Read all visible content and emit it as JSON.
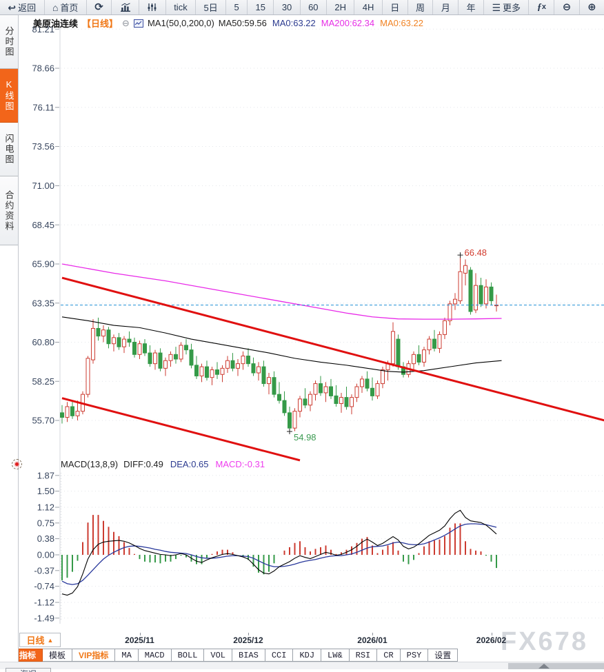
{
  "toolbar": {
    "items": [
      {
        "name": "back",
        "icon": "back",
        "label": "返回"
      },
      {
        "name": "home",
        "icon": "home",
        "label": "首页"
      },
      {
        "name": "refresh",
        "icon": "refresh"
      },
      {
        "name": "chart-style-bars",
        "icon": "bars"
      },
      {
        "name": "chart-style-sliders",
        "icon": "sliders"
      },
      {
        "name": "interval-tick",
        "label": "tick"
      },
      {
        "name": "interval-5d",
        "label": "5日"
      },
      {
        "name": "interval-5",
        "label": "5"
      },
      {
        "name": "interval-15",
        "label": "15"
      },
      {
        "name": "interval-30",
        "label": "30"
      },
      {
        "name": "interval-60",
        "label": "60"
      },
      {
        "name": "interval-2h",
        "label": "2H"
      },
      {
        "name": "interval-4h",
        "label": "4H"
      },
      {
        "name": "interval-day",
        "label": "日"
      },
      {
        "name": "interval-week",
        "label": "周"
      },
      {
        "name": "interval-month",
        "label": "月"
      },
      {
        "name": "interval-year",
        "label": "年"
      },
      {
        "name": "more",
        "icon": "menu",
        "label": "更多"
      },
      {
        "name": "formula",
        "icon": "fx"
      },
      {
        "name": "zoom-out",
        "icon": "zoom-out"
      },
      {
        "name": "zoom-in",
        "icon": "zoom-in"
      }
    ]
  },
  "sidebar": {
    "tabs": [
      {
        "name": "time-share-chart",
        "label": "分时图",
        "active": false
      },
      {
        "name": "kline-chart",
        "label": "K线图",
        "active": true
      },
      {
        "name": "flash-chart",
        "label": "闪电图",
        "active": false
      },
      {
        "name": "contract-info",
        "label": "合约资料",
        "active": false
      }
    ]
  },
  "chart_header": {
    "symbol": "美原油连续",
    "period_tag": "【日线】",
    "ma_settings": "MA1(50,0,200,0)",
    "ma_values": [
      {
        "label": "MA50:59.56",
        "color": "#222222"
      },
      {
        "label": "MA0:63.22",
        "color": "#2b3a8f"
      },
      {
        "label": "MA200:62.34",
        "color": "#e62ee6"
      },
      {
        "label": "MA0:63.22",
        "color": "#f08223"
      }
    ]
  },
  "macd_header": {
    "title": "MACD(13,8,9)",
    "values": [
      {
        "label": "DIFF:0.49",
        "color": "#222222"
      },
      {
        "label": "DEA:0.65",
        "color": "#2b3a8f"
      },
      {
        "label": "MACD:-0.31",
        "color": "#ee3cee"
      }
    ]
  },
  "x_axis": {
    "period_label": "日线",
    "period_arrow": "▲",
    "labels": [
      "2025/11",
      "2025/12",
      "2026/01",
      "2026/02"
    ]
  },
  "bottom_toolbar": {
    "items": [
      {
        "name": "indicator",
        "label": "指标",
        "active": true
      },
      {
        "name": "template",
        "label": "模板"
      },
      {
        "name": "vip-indicator",
        "label": "VIP指标",
        "vip": true
      },
      {
        "name": "ind-ma",
        "label": "MA",
        "mono": true
      },
      {
        "name": "ind-macd",
        "label": "MACD",
        "mono": true
      },
      {
        "name": "ind-boll",
        "label": "BOLL",
        "mono": true
      },
      {
        "name": "ind-vol",
        "label": "VOL",
        "mono": true
      },
      {
        "name": "ind-bias",
        "label": "BIAS",
        "mono": true
      },
      {
        "name": "ind-cci",
        "label": "CCI",
        "mono": true
      },
      {
        "name": "ind-kdj",
        "label": "KDJ",
        "mono": true
      },
      {
        "name": "ind-lw",
        "label": "LW&",
        "mono": true
      },
      {
        "name": "ind-rsi",
        "label": "RSI",
        "mono": true
      },
      {
        "name": "ind-cr",
        "label": "CR",
        "mono": true
      },
      {
        "name": "ind-psy",
        "label": "PSY",
        "mono": true
      },
      {
        "name": "settings",
        "label": "设置"
      }
    ]
  },
  "bottom_strip": {
    "tab_label": "海况"
  },
  "watermark": "FX678",
  "colors": {
    "accent_orange": "#f2651a",
    "candle_up": "#cc3b30",
    "candle_down": "#359a48",
    "trendline": "#e01010",
    "ma50": "#000000",
    "ma200": "#e828e8",
    "price_line": "#1e8fd5",
    "diff_line": "#000000",
    "dea_line": "#27379b",
    "high_label": "#d23b2e",
    "low_label": "#3a9a50",
    "watermark": "#d4d7dc"
  },
  "chart_data": [
    {
      "type": "candlestick",
      "symbol": "美原油连续",
      "period": "日线",
      "y_ticks": [
        81.21,
        78.66,
        76.11,
        73.56,
        71.0,
        68.45,
        65.9,
        63.35,
        60.8,
        58.25,
        55.7
      ],
      "x_tick_labels": [
        "2025/11",
        "2025/12",
        "2026/01",
        "2026/02"
      ],
      "x_tick_indices": [
        15,
        36,
        60,
        83
      ],
      "price_line_value": 63.22,
      "high_annotation": {
        "index": 77,
        "value": 66.48
      },
      "low_annotation": {
        "index": 44,
        "value": 54.98
      },
      "ma50_points": [
        [
          0,
          62.45
        ],
        [
          5,
          62.2
        ],
        [
          10,
          61.9
        ],
        [
          15,
          61.75
        ],
        [
          20,
          61.4
        ],
        [
          25,
          61.0
        ],
        [
          30,
          60.7
        ],
        [
          35,
          60.4
        ],
        [
          40,
          60.1
        ],
        [
          45,
          59.75
        ],
        [
          50,
          59.5
        ],
        [
          55,
          59.3
        ],
        [
          60,
          59.05
        ],
        [
          63,
          58.9
        ],
        [
          66,
          58.85
        ],
        [
          70,
          58.95
        ],
        [
          75,
          59.2
        ],
        [
          80,
          59.45
        ],
        [
          85,
          59.6
        ]
      ],
      "ma200_points": [
        [
          0,
          65.9
        ],
        [
          10,
          65.3
        ],
        [
          20,
          64.8
        ],
        [
          30,
          64.2
        ],
        [
          40,
          63.6
        ],
        [
          50,
          63.0
        ],
        [
          55,
          62.7
        ],
        [
          60,
          62.45
        ],
        [
          65,
          62.32
        ],
        [
          70,
          62.3
        ],
        [
          75,
          62.3
        ],
        [
          80,
          62.32
        ],
        [
          85,
          62.35
        ]
      ],
      "trendlines": [
        {
          "name": "upper",
          "start": {
            "index": 0,
            "value": 65.0
          },
          "end": {
            "index": 105,
            "value": 55.69
          }
        },
        {
          "name": "lower",
          "start": {
            "index": 0,
            "value": 57.15
          },
          "end": {
            "index": 46,
            "value": 53.1
          }
        }
      ],
      "candles_ohlc": [
        [
          56.2,
          56.7,
          55.5,
          55.9
        ],
        [
          55.9,
          56.9,
          55.6,
          56.6
        ],
        [
          56.6,
          57.0,
          55.8,
          56.0
        ],
        [
          56.0,
          57.0,
          55.7,
          56.3
        ],
        [
          56.3,
          57.6,
          56.1,
          57.4
        ],
        [
          57.4,
          59.9,
          57.2,
          59.75
        ],
        [
          59.65,
          62.3,
          59.4,
          61.7
        ],
        [
          61.7,
          62.4,
          60.9,
          61.2
        ],
        [
          61.2,
          61.9,
          60.8,
          61.6
        ],
        [
          61.6,
          61.8,
          60.4,
          60.7
        ],
        [
          60.7,
          61.3,
          60.2,
          61.1
        ],
        [
          61.1,
          61.4,
          60.3,
          60.5
        ],
        [
          60.5,
          61.2,
          60.1,
          61.0
        ],
        [
          61.0,
          61.5,
          60.5,
          60.8
        ],
        [
          60.8,
          61.1,
          59.8,
          60.0
        ],
        [
          60.0,
          60.9,
          59.7,
          60.7
        ],
        [
          60.7,
          61.0,
          59.9,
          60.1
        ],
        [
          60.1,
          60.6,
          59.2,
          59.4
        ],
        [
          59.4,
          60.3,
          59.0,
          60.1
        ],
        [
          60.1,
          60.4,
          58.9,
          59.1
        ],
        [
          59.1,
          59.8,
          58.6,
          59.6
        ],
        [
          59.6,
          60.2,
          59.2,
          60.0
        ],
        [
          60.0,
          60.5,
          59.4,
          59.7
        ],
        [
          59.7,
          60.8,
          59.5,
          60.6
        ],
        [
          60.6,
          61.0,
          60.0,
          60.3
        ],
        [
          60.3,
          60.7,
          59.1,
          59.3
        ],
        [
          59.3,
          59.9,
          58.4,
          58.6
        ],
        [
          58.6,
          59.4,
          58.2,
          59.2
        ],
        [
          59.2,
          59.6,
          58.3,
          58.5
        ],
        [
          58.5,
          59.2,
          58.0,
          59.0
        ],
        [
          59.0,
          59.5,
          58.4,
          58.7
        ],
        [
          58.7,
          59.3,
          58.2,
          59.1
        ],
        [
          59.1,
          59.9,
          58.8,
          59.6
        ],
        [
          59.6,
          60.1,
          58.9,
          59.1
        ],
        [
          59.1,
          59.7,
          58.6,
          59.4
        ],
        [
          59.4,
          60.2,
          59.0,
          59.9
        ],
        [
          59.9,
          60.4,
          59.2,
          59.4
        ],
        [
          59.4,
          59.8,
          58.6,
          58.8
        ],
        [
          58.8,
          59.5,
          58.3,
          59.2
        ],
        [
          59.2,
          59.6,
          57.9,
          58.1
        ],
        [
          58.1,
          58.8,
          57.4,
          58.5
        ],
        [
          58.5,
          58.9,
          57.2,
          57.4
        ],
        [
          57.4,
          58.2,
          56.8,
          57.0
        ],
        [
          57.0,
          57.6,
          56.0,
          56.2
        ],
        [
          56.2,
          56.6,
          54.98,
          55.2
        ],
        [
          55.2,
          56.5,
          55.0,
          56.3
        ],
        [
          56.3,
          57.3,
          55.9,
          57.1
        ],
        [
          57.1,
          57.8,
          56.5,
          56.7
        ],
        [
          56.7,
          57.6,
          56.3,
          57.4
        ],
        [
          57.4,
          58.3,
          57.0,
          58.1
        ],
        [
          58.1,
          58.6,
          57.3,
          57.5
        ],
        [
          57.5,
          58.2,
          56.9,
          57.9
        ],
        [
          57.9,
          58.4,
          57.1,
          57.3
        ],
        [
          57.3,
          58.0,
          56.6,
          56.8
        ],
        [
          56.8,
          57.5,
          56.2,
          57.2
        ],
        [
          57.2,
          57.9,
          56.4,
          56.6
        ],
        [
          56.6,
          57.4,
          56.1,
          57.2
        ],
        [
          57.2,
          58.1,
          56.9,
          57.9
        ],
        [
          57.9,
          58.6,
          57.5,
          58.4
        ],
        [
          58.4,
          58.9,
          57.6,
          57.8
        ],
        [
          57.8,
          58.5,
          57.0,
          57.3
        ],
        [
          57.3,
          58.3,
          57.1,
          58.1
        ],
        [
          58.1,
          59.2,
          57.8,
          59.0
        ],
        [
          59.0,
          59.6,
          58.3,
          59.4
        ],
        [
          59.4,
          62.1,
          59.2,
          61.5
        ],
        [
          61.0,
          61.3,
          59.0,
          59.2
        ],
        [
          59.2,
          59.5,
          58.5,
          58.7
        ],
        [
          58.7,
          59.6,
          58.5,
          59.4
        ],
        [
          59.4,
          60.2,
          59.0,
          60.0
        ],
        [
          60.0,
          60.6,
          59.3,
          59.5
        ],
        [
          59.5,
          60.5,
          59.2,
          60.3
        ],
        [
          60.3,
          61.2,
          60.0,
          61.0
        ],
        [
          61.0,
          61.6,
          60.2,
          60.4
        ],
        [
          60.4,
          61.5,
          60.1,
          61.3
        ],
        [
          61.3,
          62.4,
          61.0,
          62.2
        ],
        [
          62.2,
          63.5,
          61.9,
          63.3
        ],
        [
          63.3,
          64.0,
          62.9,
          63.6
        ],
        [
          63.5,
          66.48,
          63.3,
          65.4
        ],
        [
          65.3,
          66.2,
          64.5,
          65.8
        ],
        [
          65.5,
          65.7,
          62.6,
          62.8
        ],
        [
          62.9,
          65.3,
          62.7,
          64.5
        ],
        [
          64.5,
          65.0,
          63.1,
          63.3
        ],
        [
          63.3,
          64.9,
          63.0,
          64.4
        ],
        [
          64.4,
          64.7,
          63.2,
          63.5
        ],
        [
          63.2,
          63.9,
          62.8,
          63.22
        ]
      ]
    },
    {
      "type": "macd",
      "params": "(13,8,9)",
      "diff_last": 0.49,
      "dea_last": 0.65,
      "macd_last": -0.31,
      "y_ticks": [
        1.87,
        1.5,
        1.12,
        0.75,
        0.38,
        0.0,
        -0.37,
        -0.74,
        -1.12,
        -1.49
      ],
      "diff": [
        -0.92,
        -0.95,
        -0.9,
        -0.75,
        -0.45,
        -0.1,
        0.12,
        0.25,
        0.3,
        0.32,
        0.33,
        0.34,
        0.32,
        0.28,
        0.22,
        0.15,
        0.1,
        0.07,
        0.04,
        0.01,
        0.0,
        -0.02,
        0.0,
        0.03,
        0.0,
        -0.08,
        -0.15,
        -0.18,
        -0.12,
        -0.07,
        -0.03,
        0.01,
        0.03,
        0.01,
        -0.02,
        -0.05,
        -0.1,
        -0.22,
        -0.35,
        -0.43,
        -0.45,
        -0.38,
        -0.28,
        -0.22,
        -0.16,
        -0.08,
        -0.02,
        -0.06,
        -0.09,
        -0.04,
        0.01,
        0.06,
        0.03,
        -0.01,
        0.01,
        0.06,
        0.12,
        0.2,
        0.3,
        0.37,
        0.3,
        0.22,
        0.27,
        0.35,
        0.43,
        0.35,
        0.2,
        0.14,
        0.18,
        0.26,
        0.36,
        0.46,
        0.52,
        0.58,
        0.68,
        0.85,
        0.98,
        1.05,
        0.88,
        0.8,
        0.78,
        0.76,
        0.7,
        0.6,
        0.49
      ],
      "dea": [
        -0.62,
        -0.68,
        -0.7,
        -0.68,
        -0.6,
        -0.48,
        -0.35,
        -0.22,
        -0.1,
        -0.01,
        0.06,
        0.12,
        0.17,
        0.2,
        0.21,
        0.2,
        0.18,
        0.16,
        0.13,
        0.11,
        0.08,
        0.06,
        0.05,
        0.04,
        0.03,
        0.0,
        -0.04,
        -0.07,
        -0.08,
        -0.08,
        -0.07,
        -0.05,
        -0.03,
        -0.02,
        -0.02,
        -0.03,
        -0.04,
        -0.08,
        -0.14,
        -0.2,
        -0.25,
        -0.28,
        -0.28,
        -0.27,
        -0.25,
        -0.22,
        -0.18,
        -0.15,
        -0.13,
        -0.11,
        -0.08,
        -0.05,
        -0.03,
        -0.02,
        -0.02,
        0.0,
        0.02,
        0.06,
        0.11,
        0.16,
        0.19,
        0.2,
        0.21,
        0.24,
        0.28,
        0.3,
        0.28,
        0.25,
        0.24,
        0.24,
        0.26,
        0.3,
        0.35,
        0.4,
        0.46,
        0.53,
        0.61,
        0.68,
        0.72,
        0.73,
        0.73,
        0.72,
        0.71,
        0.68,
        0.65
      ],
      "histogram": [
        -0.6,
        -0.54,
        -0.4,
        -0.14,
        0.3,
        0.76,
        0.94,
        0.94,
        0.8,
        0.66,
        0.54,
        0.44,
        0.3,
        0.16,
        0.02,
        -0.1,
        -0.16,
        -0.18,
        -0.18,
        -0.2,
        -0.16,
        -0.16,
        -0.1,
        -0.02,
        -0.06,
        -0.16,
        -0.22,
        -0.22,
        -0.08,
        0.02,
        0.08,
        0.12,
        0.12,
        0.06,
        0.0,
        -0.04,
        -0.12,
        -0.28,
        -0.42,
        -0.46,
        -0.4,
        -0.2,
        0.0,
        0.1,
        0.18,
        0.28,
        0.32,
        0.18,
        0.08,
        0.14,
        0.18,
        0.22,
        0.12,
        0.02,
        0.06,
        0.12,
        0.2,
        0.28,
        0.38,
        0.42,
        0.22,
        0.04,
        0.12,
        0.22,
        0.3,
        0.1,
        -0.16,
        -0.22,
        -0.12,
        0.04,
        0.2,
        0.32,
        0.34,
        0.36,
        0.44,
        0.64,
        0.74,
        0.74,
        0.32,
        0.14,
        0.1,
        0.08,
        -0.02,
        -0.16,
        -0.31
      ]
    }
  ]
}
